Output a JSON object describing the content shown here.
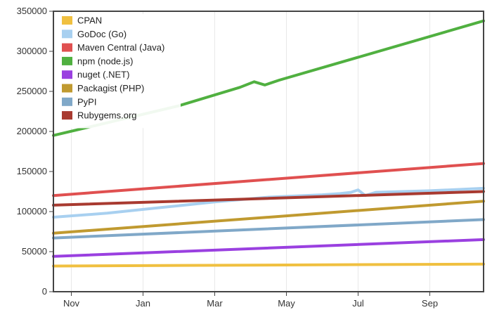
{
  "chart_data": {
    "type": "line",
    "title": "",
    "xlabel": "",
    "ylabel": "",
    "x_tick_labels": [
      "Nov",
      "Jan",
      "Mar",
      "May",
      "Jul",
      "Sep"
    ],
    "x_tick_positions": [
      0.5,
      2.5,
      4.5,
      6.5,
      8.5,
      10.5
    ],
    "xlim": [
      0,
      12
    ],
    "ylim": [
      0,
      350000
    ],
    "y_ticks": [
      0,
      50000,
      100000,
      150000,
      200000,
      250000,
      300000,
      350000
    ],
    "y_tick_labels": [
      "0",
      "50000",
      "100000",
      "150000",
      "200000",
      "250000",
      "300000",
      "350000"
    ],
    "grid": "vertical",
    "legend_position": "top-left",
    "series": [
      {
        "name": "CPAN",
        "color": "#f0c040",
        "x": [
          0,
          12
        ],
        "y": [
          32000,
          34500
        ]
      },
      {
        "name": "GoDoc (Go)",
        "color": "#a8d0f0",
        "x": [
          0,
          1.5,
          3,
          4.5,
          6,
          7.5,
          8,
          8.3,
          8.5,
          8.7,
          9,
          10.5,
          12
        ],
        "y": [
          93000,
          98000,
          105000,
          112000,
          118000,
          121000,
          122500,
          124000,
          127000,
          120000,
          124000,
          126000,
          129000
        ]
      },
      {
        "name": "Maven Central (Java)",
        "color": "#e05050",
        "x": [
          0,
          12
        ],
        "y": [
          120000,
          160000
        ]
      },
      {
        "name": "npm (node.js)",
        "color": "#50b040",
        "x": [
          0,
          3.5,
          5.2,
          5.6,
          5.9,
          6.3,
          12
        ],
        "y": [
          195000,
          232000,
          255000,
          262000,
          258000,
          264000,
          338000
        ]
      },
      {
        "name": "nuget (.NET)",
        "color": "#9a40e0",
        "x": [
          0,
          12
        ],
        "y": [
          44000,
          65000
        ]
      },
      {
        "name": "Packagist (PHP)",
        "color": "#c09a30",
        "x": [
          0,
          12
        ],
        "y": [
          73000,
          113000
        ]
      },
      {
        "name": "PyPI",
        "color": "#80a8c8",
        "x": [
          0,
          12
        ],
        "y": [
          67000,
          90000
        ]
      },
      {
        "name": "Rubygems.org",
        "color": "#a83a30",
        "x": [
          0,
          12
        ],
        "y": [
          108000,
          125000
        ]
      }
    ]
  }
}
